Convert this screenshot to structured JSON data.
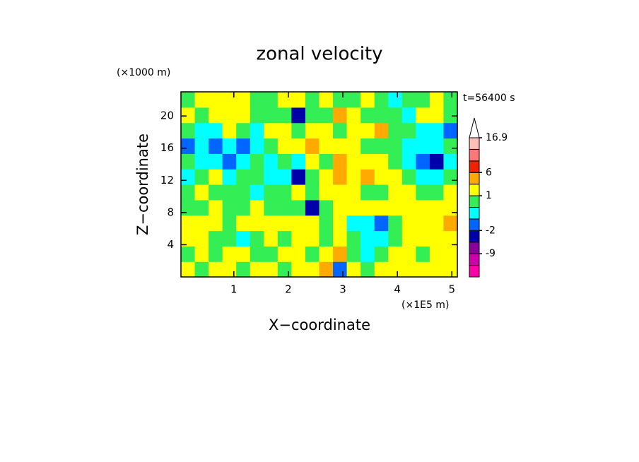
{
  "chart_data": {
    "type": "contour",
    "title": "zonal velocity",
    "y_unit": "(×1000 m)",
    "x_unit": "(×1E5 m)",
    "time_label": "t=56400 s",
    "xlabel": "X−coordinate",
    "ylabel": "Z−coordinate",
    "xlim": [
      0.03,
      5.1
    ],
    "ylim": [
      0,
      23
    ],
    "xticks": [
      1,
      2,
      3,
      4,
      5
    ],
    "yticks": [
      4,
      8,
      12,
      16,
      20
    ],
    "levels": [
      -16,
      -12.5,
      -9,
      -5.5,
      -2,
      -1,
      0,
      1,
      3.5,
      6,
      9.6,
      13.3,
      16.9
    ],
    "colors": [
      "#ff00aa",
      "#cc00aa",
      "#880099",
      "#0000aa",
      "#0066ff",
      "#00ffff",
      "#33ee55",
      "#ffff00",
      "#ffaa00",
      "#ee2200",
      "#ff7777",
      "#ffc0b8"
    ],
    "over_color": "#ffffff",
    "colorbar_ticks": [
      16.9,
      6,
      1,
      -2,
      -9
    ],
    "z": [
      [
        2,
        0.5,
        2,
        2,
        0.5,
        2,
        2,
        0.5,
        2,
        2,
        5,
        -1.5,
        2,
        0.5,
        2,
        2,
        2,
        2,
        2,
        2
      ],
      [
        0.5,
        2,
        0.5,
        2,
        2,
        0.5,
        0.5,
        2,
        2,
        0.5,
        2,
        4,
        0.5,
        -0.5,
        0.5,
        2,
        2,
        0.5,
        2,
        2
      ],
      [
        2,
        2,
        0.5,
        0.5,
        -0.5,
        0.5,
        2,
        0.5,
        2,
        2,
        0.5,
        2,
        0.5,
        -0.5,
        -0.5,
        0.5,
        2,
        2,
        2,
        2
      ],
      [
        2,
        2,
        2,
        0.5,
        2,
        2,
        2,
        2,
        2,
        2,
        0.5,
        2,
        -0.5,
        -0.5,
        -1.5,
        0.5,
        2,
        2,
        2,
        4
      ],
      [
        0.5,
        0.5,
        2,
        0.5,
        0.5,
        2,
        0.5,
        0.5,
        0.5,
        -3,
        0.5,
        2,
        2,
        2,
        2,
        2,
        2,
        2,
        2,
        2
      ],
      [
        0.5,
        2,
        0.5,
        0.5,
        0.5,
        -0.5,
        0.5,
        0.5,
        2,
        0.5,
        2,
        2,
        2,
        0.5,
        0.5,
        2,
        2,
        0.5,
        0.5,
        2
      ],
      [
        -0.5,
        0.5,
        2,
        -0.5,
        0.5,
        0.5,
        -0.5,
        -0.5,
        -3,
        0.5,
        2,
        4,
        2,
        4,
        2,
        2,
        0.5,
        -0.5,
        -0.5,
        0.5
      ],
      [
        0.5,
        -0.5,
        -0.5,
        -1.5,
        -0.5,
        0.5,
        -0.5,
        0.5,
        -0.5,
        2,
        0.5,
        4,
        2,
        2,
        2,
        0.5,
        -0.5,
        -1.5,
        -3,
        -0.5
      ],
      [
        -1.5,
        -0.5,
        -1.5,
        -0.5,
        -1.5,
        -0.5,
        0.5,
        2,
        2,
        4,
        2,
        2,
        2,
        0.5,
        0.5,
        0.5,
        -0.5,
        -0.5,
        -0.5,
        0.5
      ],
      [
        0.5,
        -0.5,
        -0.5,
        2,
        0.5,
        -0.5,
        2,
        2,
        0.5,
        2,
        2,
        0.5,
        2,
        2,
        4,
        0.5,
        0.5,
        -0.5,
        -0.5,
        -1.5
      ],
      [
        2,
        0.5,
        2,
        2,
        2,
        0.5,
        0.5,
        0.5,
        -3,
        0.5,
        0.5,
        4,
        2,
        0.5,
        0.5,
        0.5,
        -0.5,
        2,
        2,
        0.5
      ],
      [
        0.5,
        2,
        2,
        2,
        2,
        0.5,
        0.5,
        2,
        2,
        0.5,
        2,
        0.5,
        0.5,
        2,
        0.5,
        -0.5,
        0.5,
        0.5,
        2,
        0.5
      ]
    ]
  }
}
